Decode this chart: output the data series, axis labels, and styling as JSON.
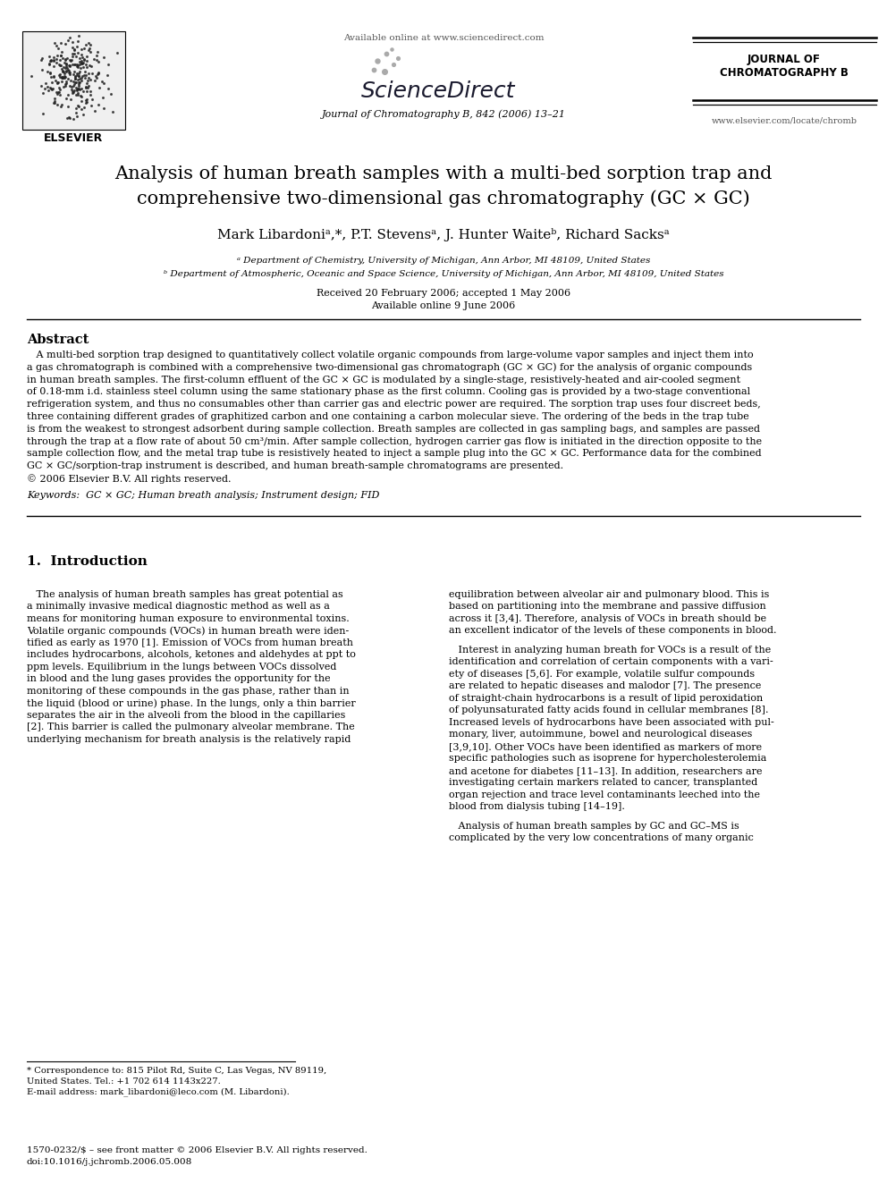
{
  "bg_color": "#ffffff",
  "fig_width": 9.92,
  "fig_height": 13.23,
  "header": {
    "available_online": "Available online at www.sciencedirect.com",
    "journal_name_center": "Journal of Chromatography B, 842 (2006) 13–21",
    "journal_name_right_line1": "JOURNAL OF",
    "journal_name_right_line2": "CHROMATOGRAPHY B",
    "url_right": "www.elsevier.com/locate/chromb",
    "elsevier_label": "ELSEVIER"
  },
  "title_line1": "Analysis of human breath samples with a multi-bed sorption trap and",
  "title_line2": "comprehensive two-dimensional gas chromatography (GC × GC)",
  "authors": "Mark Libardoniᵃ,*, P.T. Stevensᵃ, J. Hunter Waiteᵇ, Richard Sacksᵃ",
  "affil_a": "ᵃ Department of Chemistry, University of Michigan, Ann Arbor, MI 48109, United States",
  "affil_b": "ᵇ Department of Atmospheric, Oceanic and Space Science, University of Michigan, Ann Arbor, MI 48109, United States",
  "received": "Received 20 February 2006; accepted 1 May 2006",
  "available": "Available online 9 June 2006",
  "abstract_title": "Abstract",
  "abstract_text": "   A multi-bed sorption trap designed to quantitatively collect volatile organic compounds from large-volume vapor samples and inject them into\na gas chromatograph is combined with a comprehensive two-dimensional gas chromatograph (GC × GC) for the analysis of organic compounds\nin human breath samples. The first-column effluent of the GC × GC is modulated by a single-stage, resistively-heated and air-cooled segment\nof 0.18-mm i.d. stainless steel column using the same stationary phase as the first column. Cooling gas is provided by a two-stage conventional\nrefrigeration system, and thus no consumables other than carrier gas and electric power are required. The sorption trap uses four discreet beds,\nthree containing different grades of graphitized carbon and one containing a carbon molecular sieve. The ordering of the beds in the trap tube\nis from the weakest to strongest adsorbent during sample collection. Breath samples are collected in gas sampling bags, and samples are passed\nthrough the trap at a flow rate of about 50 cm³/min. After sample collection, hydrogen carrier gas flow is initiated in the direction opposite to the\nsample collection flow, and the metal trap tube is resistively heated to inject a sample plug into the GC × GC. Performance data for the combined\nGC × GC/sorption-trap instrument is described, and human breath-sample chromatograms are presented.\n© 2006 Elsevier B.V. All rights reserved.",
  "keywords": "Keywords:  GC × GC; Human breath analysis; Instrument design; FID",
  "section1_title": "1.  Introduction",
  "intro_left": "   The analysis of human breath samples has great potential as\na minimally invasive medical diagnostic method as well as a\nmeans for monitoring human exposure to environmental toxins.\nVolatile organic compounds (VOCs) in human breath were iden-\ntified as early as 1970 [1]. Emission of VOCs from human breath\nincludes hydrocarbons, alcohols, ketones and aldehydes at ppt to\nppm levels. Equilibrium in the lungs between VOCs dissolved\nin blood and the lung gases provides the opportunity for the\nmonitoring of these compounds in the gas phase, rather than in\nthe liquid (blood or urine) phase. In the lungs, only a thin barrier\nseparates the air in the alveoli from the blood in the capillaries\n[2]. This barrier is called the pulmonary alveolar membrane. The\nunderlying mechanism for breath analysis is the relatively rapid",
  "intro_right": "equilibration between alveolar air and pulmonary blood. This is\nbased on partitioning into the membrane and passive diffusion\nacross it [3,4]. Therefore, analysis of VOCs in breath should be\nan excellent indicator of the levels of these components in blood.\n\n   Interest in analyzing human breath for VOCs is a result of the\nidentification and correlation of certain components with a vari-\nety of diseases [5,6]. For example, volatile sulfur compounds\nare related to hepatic diseases and malodor [7]. The presence\nof straight-chain hydrocarbons is a result of lipid peroxidation\nof polyunsaturated fatty acids found in cellular membranes [8].\nIncreased levels of hydrocarbons have been associated with pul-\nmonary, liver, autoimmune, bowel and neurological diseases\n[3,9,10]. Other VOCs have been identified as markers of more\nspecific pathologies such as isoprene for hypercholesterolemia\nand acetone for diabetes [11–13]. In addition, researchers are\ninvestigating certain markers related to cancer, transplanted\norgan rejection and trace level contaminants leeched into the\nblood from dialysis tubing [14–19].\n\n   Analysis of human breath samples by GC and GC–MS is\ncomplicated by the very low concentrations of many organic",
  "footnote_text": "* Correspondence to: 815 Pilot Rd, Suite C, Las Vegas, NV 89119,\nUnited States. Tel.: +1 702 614 1143x227.\nE-mail address: mark_libardoni@leco.com (M. Libardoni).",
  "copyright_line1": "1570-0232/$ – see front matter © 2006 Elsevier B.V. All rights reserved.",
  "copyright_line2": "doi:10.1016/j.jchromb.2006.05.008"
}
